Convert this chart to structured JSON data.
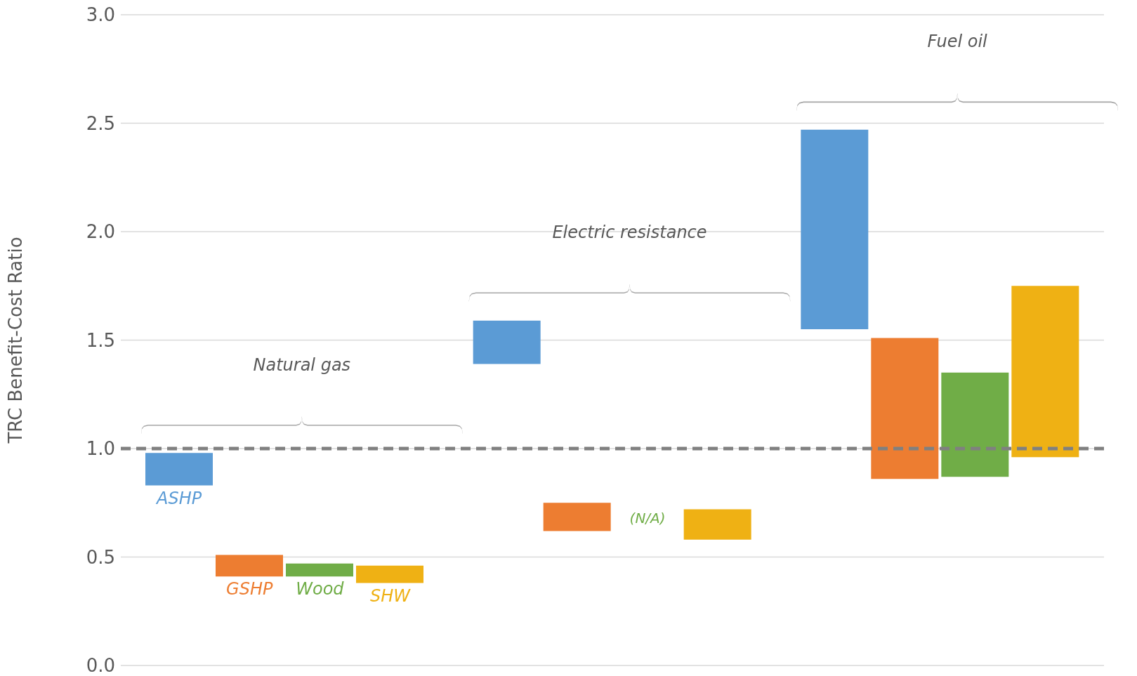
{
  "chart_data": {
    "type": "bar",
    "ylabel": "TRC Benefit-Cost Ratio",
    "categories": [
      "Natural gas",
      "Electric resistance",
      "Fuel oil"
    ],
    "series": [
      {
        "name": "ASHP",
        "color": "#5b9bd5",
        "values": [
          0.15,
          0.2,
          0.92
        ],
        "base": [
          0.83,
          1.39,
          1.55
        ]
      },
      {
        "name": "GSHP",
        "color": "#ed7d31",
        "values": [
          0.1,
          0.13,
          0.65
        ],
        "base": [
          0.41,
          0.62,
          0.86
        ]
      },
      {
        "name": "Wood",
        "color": "#70ad47",
        "values": [
          0.06,
          null,
          0.48
        ],
        "base": [
          0.41,
          null,
          0.87
        ]
      },
      {
        "name": "SHW",
        "color": "#efb114",
        "values": [
          0.08,
          0.14,
          0.79
        ],
        "base": [
          0.38,
          0.58,
          0.96
        ]
      }
    ],
    "annotations": [
      {
        "text": "(N/A)",
        "x": "Electric resistance",
        "y": 0.68
      }
    ],
    "ref_lines": [
      {
        "axis": "y",
        "value": 1.0,
        "color": "#808080",
        "line_style": "dashed"
      }
    ],
    "ylim": [
      0,
      3
    ],
    "yticks": [
      {
        "value": 0,
        "label": "0.0"
      },
      0.5,
      {
        "value": 1,
        "label": "1.0"
      },
      1.5,
      {
        "value": 2,
        "label": "2.0"
      },
      2.5,
      {
        "value": 3,
        "label": "3.0"
      }
    ],
    "grid": "y",
    "tick_labels": "y"
  }
}
